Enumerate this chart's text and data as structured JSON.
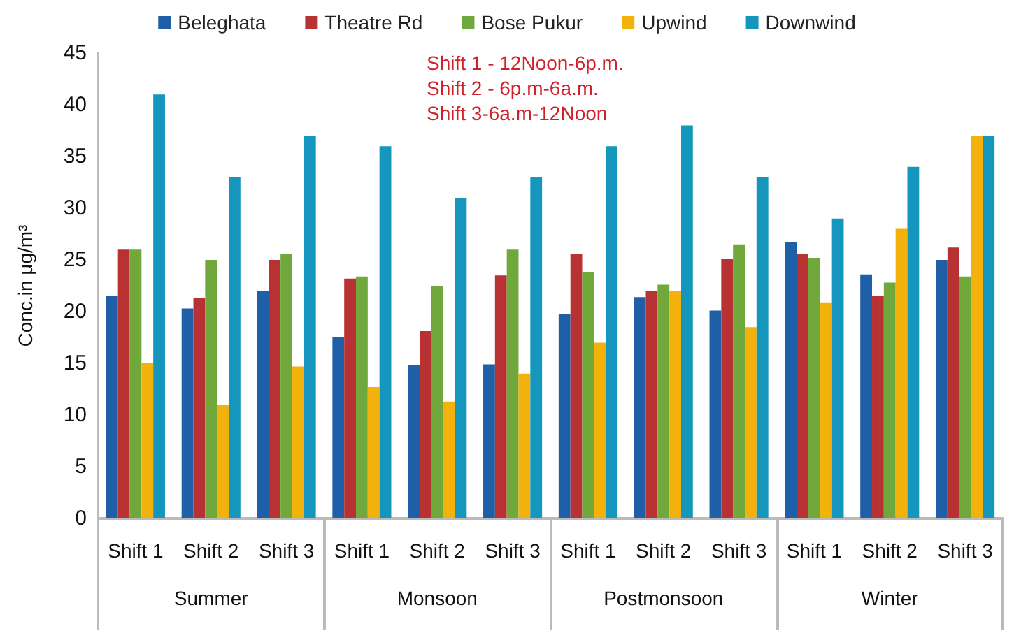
{
  "chart_data": {
    "type": "bar",
    "ylabel": "Conc.in μg/m³",
    "categories": [
      "Shift 1",
      "Shift 2",
      "Shift 3",
      "Shift 1",
      "Shift 2",
      "Shift 3",
      "Shift 1",
      "Shift 2",
      "Shift 3",
      "Shift 1",
      "Shift 2",
      "Shift 3"
    ],
    "series": [
      {
        "name": "Beleghata",
        "color": "#1f5fa8",
        "values": [
          21.5,
          20.3,
          22,
          17.5,
          14.8,
          14.9,
          19.8,
          21.4,
          20.1,
          26.7,
          23.6,
          25
        ]
      },
      {
        "name": "Theatre Rd",
        "color": "#b83234",
        "values": [
          26,
          21.3,
          25,
          23.2,
          18.1,
          23.5,
          25.6,
          22,
          25.1,
          25.6,
          21.5,
          26.2
        ]
      },
      {
        "name": "Bose Pukur",
        "color": "#71a83c",
        "values": [
          26,
          25,
          25.6,
          23.4,
          22.5,
          26,
          23.8,
          22.6,
          26.5,
          25.2,
          22.8,
          23.4
        ]
      },
      {
        "name": "Upwind",
        "color": "#f2b10b",
        "values": [
          15,
          11,
          14.7,
          12.7,
          11.3,
          14,
          17,
          22,
          18.5,
          20.9,
          28,
          37
        ]
      },
      {
        "name": "Downwind",
        "color": "#1596bd",
        "values": [
          41,
          33,
          37,
          36,
          31,
          33,
          36,
          38,
          33,
          29,
          34,
          37
        ]
      }
    ],
    "ylim": [
      0,
      45
    ],
    "yticks": [
      0,
      5,
      10,
      15,
      20,
      25,
      30,
      35,
      40,
      45
    ],
    "grid": false,
    "legend": "top",
    "annotations": [
      "Shift 1 - 12Noon-6p.m.",
      "Shift 2 - 6p.m-6a.m.",
      "Shift 3-6a.m-12Noon",
      "Summer",
      "Monsoon",
      "Postmonsoon",
      "Winter"
    ]
  }
}
